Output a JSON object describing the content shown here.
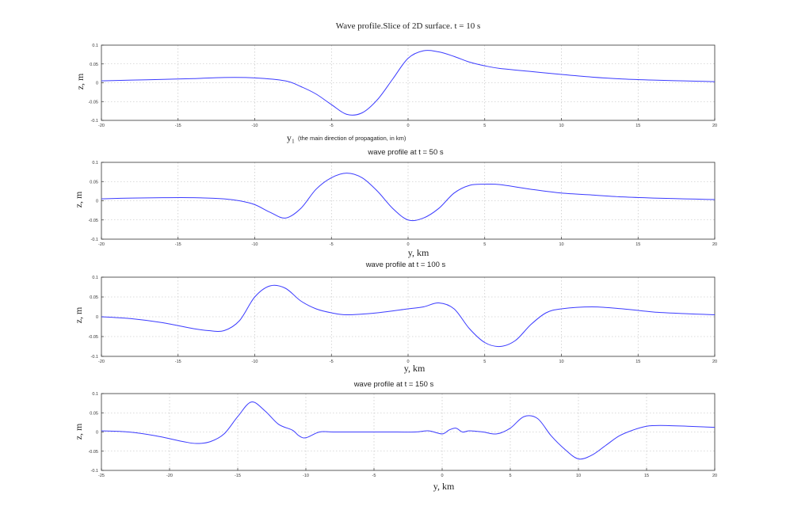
{
  "colors": {
    "line": "#3b3bff",
    "axis": "#333333",
    "grid": "#b8b8b8",
    "background": "#ffffff"
  },
  "chart_data": [
    {
      "type": "line",
      "title": "Wave profile.Slice of 2D surface. t = 10 s",
      "xlabel_main": "y₁",
      "xlabel_note": "(the main direction of propagation, in km)",
      "ylabel": "z, m",
      "xlim": [
        -20,
        20
      ],
      "ylim": [
        -0.1,
        0.1
      ],
      "xticks": [
        -20,
        -15,
        -10,
        -5,
        0,
        5,
        10,
        15,
        20
      ],
      "xtick_labels": [
        "-20",
        "-15",
        "-10",
        "-5",
        "0",
        "5",
        "10",
        "15",
        "20"
      ],
      "yticks": [
        0.1,
        0.05,
        0,
        -0.05,
        -0.1
      ],
      "ytick_labels": [
        "0.1",
        "0.05",
        "0",
        "-0.05",
        "-0.1"
      ],
      "grid": true,
      "series": [
        {
          "x": [
            -20,
            -18,
            -16,
            -14,
            -12,
            -10,
            -8,
            -7,
            -6,
            -5,
            -4,
            -3,
            -2,
            -1,
            0,
            1,
            2,
            3,
            4,
            5,
            6,
            8,
            10,
            12,
            14,
            16,
            18,
            20
          ],
          "y": [
            0.005,
            0.007,
            0.009,
            0.011,
            0.014,
            0.013,
            0.005,
            -0.01,
            -0.03,
            -0.058,
            -0.084,
            -0.08,
            -0.045,
            0.01,
            0.065,
            0.085,
            0.082,
            0.07,
            0.055,
            0.045,
            0.038,
            0.03,
            0.022,
            0.015,
            0.01,
            0.007,
            0.005,
            0.003
          ]
        }
      ]
    },
    {
      "type": "line",
      "title": "wave profile at t = 50 s",
      "xlabel": "y, km",
      "ylabel": "z, m",
      "xlim": [
        -20,
        20
      ],
      "ylim": [
        -0.1,
        0.1
      ],
      "xticks": [
        -20,
        -15,
        -10,
        -5,
        0,
        5,
        10,
        15,
        20
      ],
      "xtick_labels": [
        "-20",
        "-15",
        "-10",
        "-5",
        "0",
        "5",
        "10",
        "15",
        "20"
      ],
      "yticks": [
        0.1,
        0.05,
        0,
        -0.05,
        -0.1
      ],
      "ytick_labels": [
        "0.1",
        "0.05",
        "0",
        "-0.05",
        "-0.1"
      ],
      "grid": true,
      "series": [
        {
          "x": [
            -20,
            -18,
            -16,
            -14,
            -12,
            -11,
            -10,
            -9,
            -8,
            -7,
            -6,
            -5,
            -4,
            -3,
            -2,
            -1,
            0,
            1,
            2,
            3,
            4,
            5,
            6,
            8,
            10,
            12,
            14,
            16,
            18,
            20
          ],
          "y": [
            0.005,
            0.007,
            0.008,
            0.008,
            0.005,
            0.0,
            -0.01,
            -0.03,
            -0.045,
            -0.02,
            0.03,
            0.06,
            0.072,
            0.06,
            0.025,
            -0.02,
            -0.05,
            -0.045,
            -0.02,
            0.02,
            0.04,
            0.043,
            0.042,
            0.03,
            0.02,
            0.015,
            0.01,
            0.007,
            0.005,
            0.003
          ]
        }
      ]
    },
    {
      "type": "line",
      "title": "wave profile at t = 100 s",
      "xlabel": "y, km",
      "ylabel": "z, m",
      "xlim": [
        -20,
        20
      ],
      "ylim": [
        -0.1,
        0.1
      ],
      "xticks": [
        -20,
        -15,
        -10,
        -5,
        0,
        5,
        10,
        15,
        20
      ],
      "xtick_labels": [
        "-20",
        "-15",
        "-10",
        "-5",
        "0",
        "5",
        "10",
        "15",
        "20"
      ],
      "yticks": [
        0.1,
        0.05,
        0,
        -0.05,
        -0.1
      ],
      "ytick_labels": [
        "0.1",
        "0.05",
        "0",
        "-0.05",
        "-0.1"
      ],
      "grid": true,
      "series": [
        {
          "x": [
            -20,
            -18,
            -16,
            -14,
            -13,
            -12,
            -11,
            -10,
            -9,
            -8,
            -7,
            -6,
            -5,
            -4,
            -2,
            0,
            1,
            2,
            3,
            4,
            5,
            6,
            7,
            8,
            9,
            10,
            12,
            14,
            16,
            18,
            20
          ],
          "y": [
            0.0,
            -0.005,
            -0.015,
            -0.03,
            -0.035,
            -0.035,
            -0.01,
            0.05,
            0.078,
            0.072,
            0.04,
            0.02,
            0.01,
            0.005,
            0.01,
            0.02,
            0.025,
            0.035,
            0.02,
            -0.03,
            -0.065,
            -0.075,
            -0.06,
            -0.02,
            0.01,
            0.02,
            0.025,
            0.02,
            0.012,
            0.008,
            0.005
          ]
        }
      ]
    },
    {
      "type": "line",
      "title": "wave profile at t = 150 s",
      "xlabel": "y, km",
      "ylabel": "z, m",
      "xlim": [
        -25,
        20
      ],
      "ylim": [
        -0.1,
        0.1
      ],
      "xticks": [
        -25,
        -20,
        -15,
        -10,
        -5,
        0,
        5,
        10,
        15,
        20
      ],
      "xtick_labels": [
        "-25",
        "-20",
        "-15",
        "-10",
        "-5",
        "0",
        "5",
        "10",
        "15",
        "20"
      ],
      "yticks": [
        0.1,
        0.05,
        0,
        -0.05,
        -0.1
      ],
      "ytick_labels": [
        "0.1",
        "0.05",
        "0",
        "-0.05",
        "-0.1"
      ],
      "grid": true,
      "series": [
        {
          "x": [
            -25,
            -23,
            -21,
            -19,
            -18,
            -17,
            -16,
            -15,
            -14,
            -13,
            -12,
            -11,
            -10.5,
            -10,
            -9,
            -8,
            -6,
            -4,
            -2,
            -1,
            0,
            0.5,
            1,
            1.5,
            2,
            3,
            4,
            5,
            6,
            7,
            8,
            9,
            10,
            11,
            12,
            13,
            14,
            15,
            16,
            18,
            20
          ],
          "y": [
            0.003,
            0.0,
            -0.01,
            -0.025,
            -0.03,
            -0.025,
            -0.005,
            0.04,
            0.078,
            0.055,
            0.02,
            0.005,
            -0.01,
            -0.015,
            0.0,
            0.0,
            0.0,
            0.0,
            0.0,
            0.003,
            -0.005,
            0.005,
            0.01,
            0.0,
            0.003,
            0.0,
            -0.005,
            0.01,
            0.04,
            0.035,
            -0.01,
            -0.045,
            -0.07,
            -0.06,
            -0.035,
            -0.01,
            0.005,
            0.015,
            0.017,
            0.015,
            0.012
          ]
        }
      ]
    }
  ]
}
